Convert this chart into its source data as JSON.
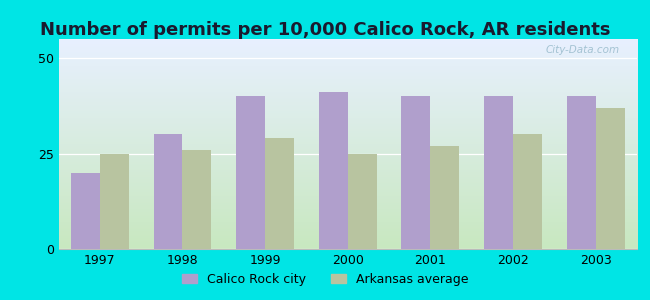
{
  "title": "Number of permits per 10,000 Calico Rock, AR residents",
  "years": [
    1997,
    1998,
    1999,
    2000,
    2001,
    2002,
    2003
  ],
  "calico_rock": [
    20,
    30,
    40,
    41,
    40,
    40,
    40
  ],
  "arkansas_avg": [
    25,
    26,
    29,
    25,
    27,
    30,
    37
  ],
  "calico_color": "#b09fcc",
  "arkansas_color": "#b8c4a0",
  "background_outer": "#00e5e5",
  "background_plot_bottom": "#c8e8c0",
  "background_plot_top": "#e8f0ff",
  "ylim": [
    0,
    55
  ],
  "yticks": [
    0,
    25,
    50
  ],
  "bar_width": 0.35,
  "legend_calico": "Calico Rock city",
  "legend_arkansas": "Arkansas average",
  "title_fontsize": 13,
  "title_color": "#1a1a2e",
  "watermark": "City-Data.com",
  "tick_fontsize": 9,
  "legend_fontsize": 9
}
